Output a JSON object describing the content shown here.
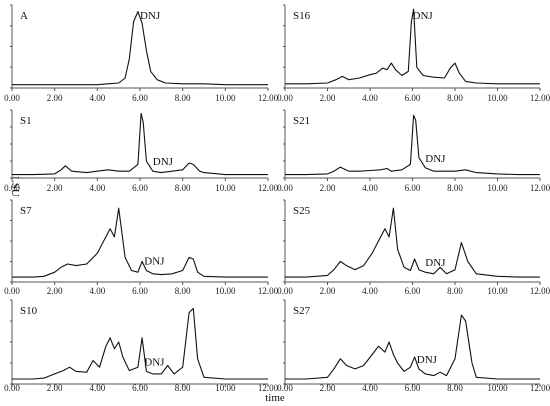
{
  "chart_data": [
    {
      "type": "line",
      "title": "A",
      "xlim": [
        0,
        12
      ],
      "xticks": [
        "0.00",
        "2.00",
        "4.00",
        "6.00",
        "8.00",
        "10.00",
        "12.00"
      ],
      "peak_label": "DNJ",
      "peak_label_x": 6.0,
      "x": [
        0,
        1,
        2,
        3,
        4,
        4.5,
        5,
        5.3,
        5.5,
        5.7,
        5.9,
        6.1,
        6.3,
        6.5,
        6.8,
        7.2,
        8,
        9,
        10,
        11,
        12
      ],
      "y": [
        0.04,
        0.04,
        0.04,
        0.04,
        0.04,
        0.05,
        0.06,
        0.12,
        0.35,
        0.8,
        0.92,
        0.78,
        0.45,
        0.2,
        0.1,
        0.06,
        0.05,
        0.05,
        0.04,
        0.04,
        0.04
      ]
    },
    {
      "type": "line",
      "title": "S16",
      "xlim": [
        0,
        12
      ],
      "xticks": [
        "0.00",
        "2.00",
        "4.00",
        "6.00",
        "8.00",
        "10.00",
        "12.00"
      ],
      "peak_label": "DNJ",
      "peak_label_x": 6.0,
      "x": [
        0,
        1,
        2,
        2.4,
        2.7,
        3,
        3.5,
        4,
        4.3,
        4.6,
        4.8,
        5,
        5.2,
        5.5,
        5.8,
        5.95,
        6.05,
        6.2,
        6.5,
        7,
        7.5,
        7.8,
        8,
        8.2,
        8.5,
        9,
        10,
        11,
        12
      ],
      "y": [
        0.05,
        0.05,
        0.06,
        0.1,
        0.14,
        0.1,
        0.12,
        0.16,
        0.18,
        0.24,
        0.22,
        0.3,
        0.22,
        0.15,
        0.2,
        0.8,
        0.95,
        0.25,
        0.15,
        0.13,
        0.12,
        0.25,
        0.3,
        0.18,
        0.08,
        0.06,
        0.05,
        0.05,
        0.05
      ]
    },
    {
      "type": "line",
      "title": "S1",
      "xlim": [
        0,
        12
      ],
      "xticks": [
        "0.00",
        "2.00",
        "4.00",
        "6.00",
        "8.00",
        "10.00",
        "12.00"
      ],
      "peak_label": "DNJ",
      "peak_label_x": 6.6,
      "x": [
        0,
        1,
        2,
        2.3,
        2.5,
        2.8,
        3.5,
        4,
        4.5,
        5,
        5.5,
        5.9,
        6.05,
        6.15,
        6.3,
        6.6,
        7,
        7.5,
        8,
        8.3,
        8.5,
        8.8,
        9,
        10,
        11,
        12
      ],
      "y": [
        0.05,
        0.05,
        0.06,
        0.12,
        0.18,
        0.1,
        0.08,
        0.1,
        0.12,
        0.1,
        0.1,
        0.2,
        0.95,
        0.82,
        0.25,
        0.1,
        0.08,
        0.1,
        0.12,
        0.22,
        0.2,
        0.1,
        0.08,
        0.05,
        0.05,
        0.05
      ]
    },
    {
      "type": "line",
      "title": "S21",
      "xlim": [
        0,
        12
      ],
      "xticks": [
        "0.00",
        "2.00",
        "4.00",
        "6.00",
        "8.00",
        "10.00",
        "12.00"
      ],
      "peak_label": "DNJ",
      "peak_label_x": 6.6,
      "x": [
        0,
        1,
        2,
        2.3,
        2.6,
        3,
        3.5,
        4,
        4.5,
        4.8,
        5,
        5.5,
        5.9,
        6.05,
        6.15,
        6.3,
        6.6,
        7,
        7.5,
        8,
        8.5,
        9,
        10,
        11,
        12
      ],
      "y": [
        0.05,
        0.05,
        0.06,
        0.1,
        0.16,
        0.1,
        0.1,
        0.11,
        0.12,
        0.14,
        0.1,
        0.12,
        0.2,
        0.92,
        0.85,
        0.3,
        0.15,
        0.1,
        0.1,
        0.1,
        0.12,
        0.08,
        0.06,
        0.05,
        0.05
      ]
    },
    {
      "type": "line",
      "title": "S7",
      "xlim": [
        0,
        12
      ],
      "xticks": [
        "0.00",
        "2.00",
        "4.00",
        "6.00",
        "8.00",
        "10.00",
        "12.00"
      ],
      "peak_label": "DNJ",
      "peak_label_x": 6.2,
      "x": [
        0,
        1,
        1.5,
        2,
        2.3,
        2.6,
        3,
        3.5,
        4,
        4.3,
        4.6,
        4.8,
        5,
        5.3,
        5.6,
        5.9,
        6.1,
        6.3,
        6.6,
        7,
        7.5,
        8,
        8.3,
        8.5,
        8.7,
        9,
        10,
        11,
        12
      ],
      "y": [
        0.06,
        0.06,
        0.07,
        0.12,
        0.18,
        0.22,
        0.2,
        0.22,
        0.35,
        0.5,
        0.65,
        0.55,
        0.9,
        0.3,
        0.14,
        0.12,
        0.25,
        0.14,
        0.1,
        0.09,
        0.1,
        0.14,
        0.3,
        0.28,
        0.12,
        0.07,
        0.06,
        0.06,
        0.06
      ]
    },
    {
      "type": "line",
      "title": "S25",
      "xlim": [
        0,
        12
      ],
      "xticks": [
        "0.00",
        "2.00",
        "4.00",
        "6.00",
        "8.00",
        "10.00",
        "12.00"
      ],
      "peak_label": "DNJ",
      "peak_label_x": 6.6,
      "x": [
        0,
        1,
        2,
        2.3,
        2.6,
        2.9,
        3.3,
        3.7,
        4.1,
        4.4,
        4.7,
        4.9,
        5.1,
        5.3,
        5.6,
        5.9,
        6.1,
        6.3,
        6.6,
        7,
        7.3,
        7.6,
        8,
        8.3,
        8.6,
        9,
        10,
        11,
        12
      ],
      "y": [
        0.06,
        0.06,
        0.08,
        0.15,
        0.25,
        0.2,
        0.15,
        0.2,
        0.35,
        0.5,
        0.65,
        0.55,
        0.9,
        0.4,
        0.18,
        0.14,
        0.28,
        0.15,
        0.12,
        0.1,
        0.18,
        0.1,
        0.15,
        0.48,
        0.25,
        0.1,
        0.07,
        0.06,
        0.06
      ]
    },
    {
      "type": "line",
      "title": "S10",
      "xlim": [
        0,
        12
      ],
      "xticks": [
        "0.00",
        "2.00",
        "4.00",
        "6.00",
        "8.00",
        "10.00",
        "12.00"
      ],
      "peak_label": "DNJ",
      "peak_label_x": 6.2,
      "x": [
        0,
        1,
        1.5,
        2,
        2.4,
        2.7,
        3,
        3.5,
        3.8,
        4.1,
        4.4,
        4.6,
        4.8,
        5,
        5.2,
        5.5,
        5.9,
        6.1,
        6.3,
        6.6,
        7,
        7.3,
        7.6,
        8,
        8.3,
        8.5,
        8.7,
        9,
        10,
        11,
        12
      ],
      "y": [
        0.06,
        0.06,
        0.07,
        0.12,
        0.16,
        0.2,
        0.15,
        0.14,
        0.28,
        0.2,
        0.45,
        0.55,
        0.42,
        0.5,
        0.32,
        0.16,
        0.2,
        0.55,
        0.15,
        0.12,
        0.12,
        0.22,
        0.12,
        0.2,
        0.85,
        0.9,
        0.3,
        0.08,
        0.06,
        0.06,
        0.06
      ]
    },
    {
      "type": "line",
      "title": "S27",
      "xlim": [
        0,
        12
      ],
      "xticks": [
        "0.00",
        "2.00",
        "4.00",
        "6.00",
        "8.00",
        "10.00",
        "12.00"
      ],
      "peak_label": "DNJ",
      "peak_label_x": 6.2,
      "x": [
        0,
        1,
        2,
        2.3,
        2.6,
        2.9,
        3.3,
        3.7,
        4.1,
        4.4,
        4.7,
        4.9,
        5.1,
        5.3,
        5.6,
        5.9,
        6.1,
        6.3,
        6.6,
        7,
        7.3,
        7.6,
        8,
        8.3,
        8.5,
        8.8,
        9,
        10,
        11,
        12
      ],
      "y": [
        0.06,
        0.06,
        0.08,
        0.18,
        0.3,
        0.22,
        0.18,
        0.22,
        0.35,
        0.45,
        0.38,
        0.5,
        0.35,
        0.25,
        0.15,
        0.2,
        0.32,
        0.18,
        0.12,
        0.1,
        0.14,
        0.1,
        0.3,
        0.82,
        0.75,
        0.25,
        0.08,
        0.06,
        0.06,
        0.06
      ]
    }
  ],
  "figure": {
    "y_axis_label": "LSU",
    "x_axis_label": "time",
    "line_color": "#111111",
    "axis_color": "#555555"
  }
}
